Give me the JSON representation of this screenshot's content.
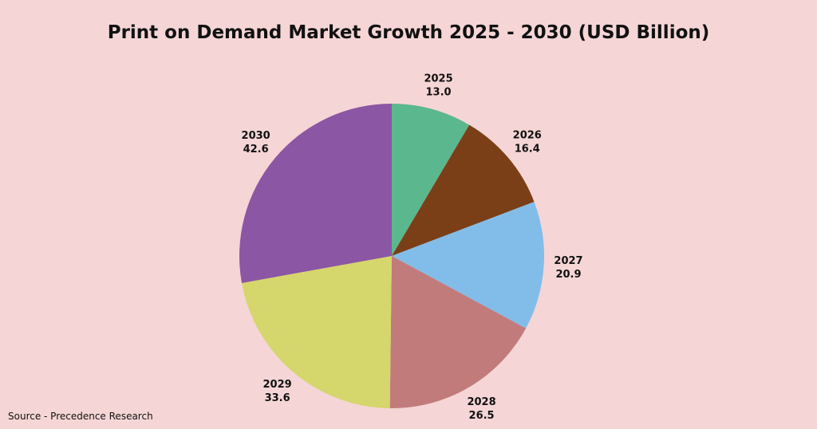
{
  "chart_data": {
    "type": "pie",
    "title": "Print on Demand Market Growth 2025 - 2030 (USD Billion)",
    "categories": [
      "2025",
      "2026",
      "2027",
      "2028",
      "2029",
      "2030"
    ],
    "values": [
      13.0,
      16.4,
      20.9,
      26.5,
      33.6,
      42.6
    ],
    "value_labels": [
      "13.0",
      "16.4",
      "20.9",
      "26.5",
      "33.6",
      "42.6"
    ],
    "colors": [
      "#5bb88e",
      "#7b3f18",
      "#82bdea",
      "#c27b7b",
      "#d5d66b",
      "#8b56a3"
    ],
    "source": "Source - Precedence Research"
  }
}
